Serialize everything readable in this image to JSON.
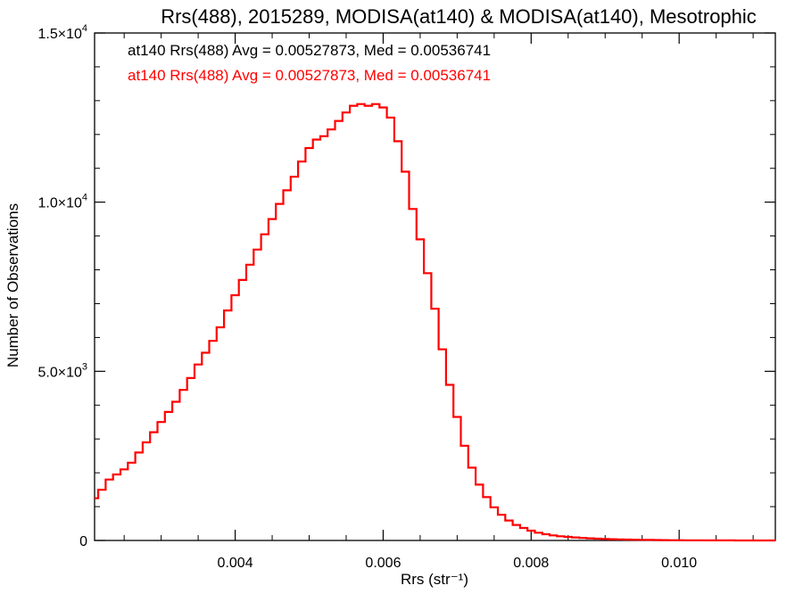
{
  "chart_data": {
    "type": "histogram",
    "title": "Rrs(488), 2015289, MODISA(at140) & MODISA(at140), Mesotrophic",
    "xlabel": "Rrs (str⁻¹)",
    "ylabel": "Number of Observations",
    "xlim": [
      0.0021,
      0.0113
    ],
    "ylim": [
      0,
      15000
    ],
    "x_ticks": [
      {
        "value": 0.004,
        "label": "0.004"
      },
      {
        "value": 0.006,
        "label": "0.006"
      },
      {
        "value": 0.008,
        "label": "0.008"
      },
      {
        "value": 0.01,
        "label": "0.010"
      }
    ],
    "y_ticks": [
      {
        "value": 0,
        "label": "0",
        "exp": ""
      },
      {
        "value": 5000,
        "label": "5.0×10",
        "exp": "3"
      },
      {
        "value": 10000,
        "label": "1.0×10",
        "exp": "4"
      },
      {
        "value": 15000,
        "label": "1.5×10",
        "exp": "4"
      }
    ],
    "annotations": [
      {
        "text": "at140 Rrs(488) Avg = 0.00527873, Med = 0.00536741",
        "color": "#000000"
      },
      {
        "text": "at140 Rrs(488) Avg = 0.00527873, Med = 0.00536741",
        "color": "#ff0000"
      }
    ],
    "series": [
      {
        "color": "#ff0000",
        "x": [
          0.0021,
          0.0022,
          0.0023,
          0.0024,
          0.0025,
          0.0026,
          0.0027,
          0.0028,
          0.0029,
          0.003,
          0.0031,
          0.0032,
          0.0033,
          0.0034,
          0.0035,
          0.0036,
          0.0037,
          0.0038,
          0.0039,
          0.004,
          0.0041,
          0.0042,
          0.0043,
          0.0044,
          0.0045,
          0.0046,
          0.0047,
          0.0048,
          0.0049,
          0.005,
          0.0051,
          0.0052,
          0.0053,
          0.0054,
          0.0055,
          0.0056,
          0.0057,
          0.0058,
          0.0059,
          0.006,
          0.0061,
          0.0062,
          0.0063,
          0.0064,
          0.0065,
          0.0066,
          0.0067,
          0.0068,
          0.0069,
          0.007,
          0.0071,
          0.0072,
          0.0073,
          0.0074,
          0.0075,
          0.0076,
          0.0077,
          0.0078,
          0.0079,
          0.008,
          0.0081,
          0.0082,
          0.0083,
          0.0084,
          0.0085,
          0.0086,
          0.0087,
          0.0088,
          0.0089,
          0.009,
          0.0091,
          0.0092,
          0.0093,
          0.0094,
          0.0095,
          0.0096,
          0.0097,
          0.0098,
          0.0099,
          0.01,
          0.0101,
          0.0102,
          0.0103,
          0.0104,
          0.0105,
          0.0106,
          0.0107,
          0.0108,
          0.0109,
          0.011,
          0.0111,
          0.0112,
          0.0113
        ],
        "values": [
          1250,
          1500,
          1800,
          1950,
          2100,
          2300,
          2600,
          2900,
          3200,
          3500,
          3800,
          4100,
          4450,
          4800,
          5200,
          5550,
          5900,
          6300,
          6800,
          7250,
          7700,
          8150,
          8600,
          9050,
          9500,
          9950,
          10350,
          10750,
          11200,
          11600,
          11850,
          11950,
          12150,
          12400,
          12650,
          12850,
          12900,
          12850,
          12900,
          12800,
          12500,
          11800,
          10900,
          9800,
          8900,
          7900,
          6850,
          5650,
          4600,
          3650,
          2800,
          2150,
          1650,
          1280,
          980,
          760,
          590,
          460,
          370,
          290,
          230,
          185,
          150,
          125,
          105,
          90,
          75,
          62,
          52,
          45,
          38,
          32,
          27,
          22,
          18,
          15,
          12,
          10,
          8,
          7,
          6,
          5,
          4,
          3,
          3,
          2,
          2,
          1,
          1,
          1,
          0,
          0,
          0
        ]
      }
    ]
  }
}
